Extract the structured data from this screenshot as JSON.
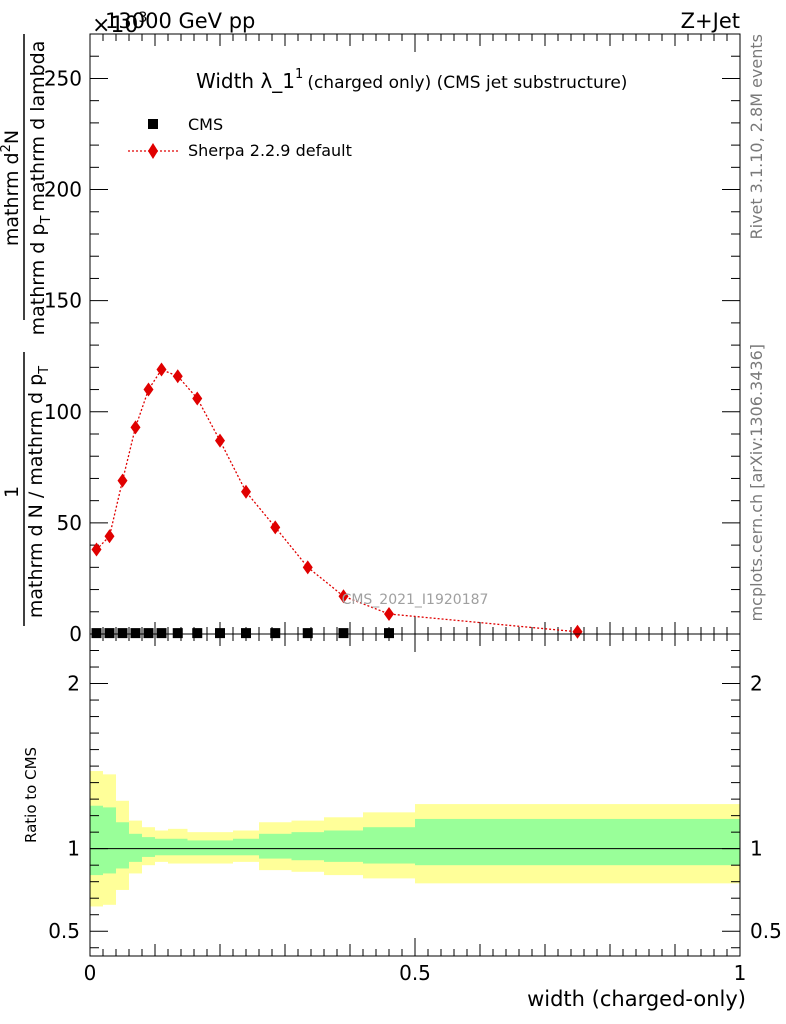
{
  "header": {
    "energy": "13000 GeV pp",
    "process": "Z+Jet",
    "exponent": "×10",
    "exponent_power": "3",
    "watermark": "CMS_2021_I1920187",
    "side_rivet": "Rivet 3.1.10,  2.8M events",
    "side_mcplots": "mcplots.cern.ch [arXiv:1306.3436]"
  },
  "chart_data": [
    {
      "type": "scatter",
      "title_main": "Width λ_1",
      "title_sup": "1",
      "title_sub": "(charged only) (CMS jet substructure)",
      "ylabel_main": "mathrm d N / mathrm d p",
      "ylabel_denominator": "mathrm d N / mathrm d p",
      "ylabel_denominator_sub": "T",
      "ylabel_numerator_one": "1",
      "ylabel_right_top": "mathrm d",
      "ylabel_right_top_sup": "2",
      "ylabel_right_top_tail": "N",
      "ylabel_right_bottom": "mathrm d p",
      "ylabel_right_bottom_sub": "T",
      "ylabel_right_bottom_tail": "mathrm d lambda",
      "xlim": [
        0,
        1
      ],
      "ylim": [
        0,
        270
      ],
      "yticks": [
        0,
        50,
        100,
        150,
        200,
        250
      ],
      "legend_placement": "top-left",
      "series": [
        {
          "name": "CMS",
          "color": "#000000",
          "marker": "square",
          "x": [
            0.01,
            0.03,
            0.05,
            0.07,
            0.09,
            0.11,
            0.135,
            0.165,
            0.2,
            0.24,
            0.285,
            0.335,
            0.39,
            0.46
          ],
          "y": [
            0.4,
            0.4,
            0.4,
            0.4,
            0.4,
            0.4,
            0.4,
            0.4,
            0.4,
            0.4,
            0.4,
            0.4,
            0.4,
            0.4
          ]
        },
        {
          "name": "Sherpa 2.2.9 default",
          "color": "#e00000",
          "marker": "diamond",
          "x": [
            0.01,
            0.03,
            0.05,
            0.07,
            0.09,
            0.11,
            0.135,
            0.165,
            0.2,
            0.24,
            0.285,
            0.335,
            0.39,
            0.46,
            0.75
          ],
          "y": [
            38,
            44,
            69,
            93,
            110,
            119,
            116,
            106,
            87,
            64,
            48,
            30,
            17,
            9,
            1
          ]
        }
      ]
    },
    {
      "type": "area",
      "ylabel": "Ratio to CMS",
      "xlabel": "width (charged-only)",
      "xlim": [
        0,
        1
      ],
      "ylim": [
        0.35,
        2.3
      ],
      "yticks": [
        0.5,
        1,
        2
      ],
      "xticks": [
        0,
        0.5,
        1
      ],
      "xtick_labels": [
        "0",
        "0.5",
        "1"
      ],
      "ytick_labels": [
        "0.5",
        "1",
        "2"
      ],
      "reference_line": 1,
      "bands": {
        "edges": [
          0,
          0.02,
          0.04,
          0.06,
          0.08,
          0.1,
          0.12,
          0.15,
          0.18,
          0.22,
          0.26,
          0.31,
          0.36,
          0.42,
          0.5,
          1.0
        ],
        "green_low": [
          0.84,
          0.85,
          0.88,
          0.92,
          0.95,
          0.96,
          0.96,
          0.96,
          0.96,
          0.96,
          0.94,
          0.93,
          0.92,
          0.91,
          0.9
        ],
        "green_high": [
          1.26,
          1.25,
          1.16,
          1.09,
          1.07,
          1.06,
          1.06,
          1.05,
          1.05,
          1.06,
          1.09,
          1.1,
          1.11,
          1.13,
          1.18
        ],
        "yellow_low": [
          0.65,
          0.66,
          0.75,
          0.85,
          0.9,
          0.92,
          0.91,
          0.91,
          0.91,
          0.92,
          0.87,
          0.86,
          0.84,
          0.82,
          0.79
        ],
        "yellow_high": [
          1.47,
          1.45,
          1.29,
          1.17,
          1.13,
          1.11,
          1.12,
          1.1,
          1.1,
          1.11,
          1.16,
          1.17,
          1.19,
          1.22,
          1.27
        ]
      }
    }
  ]
}
